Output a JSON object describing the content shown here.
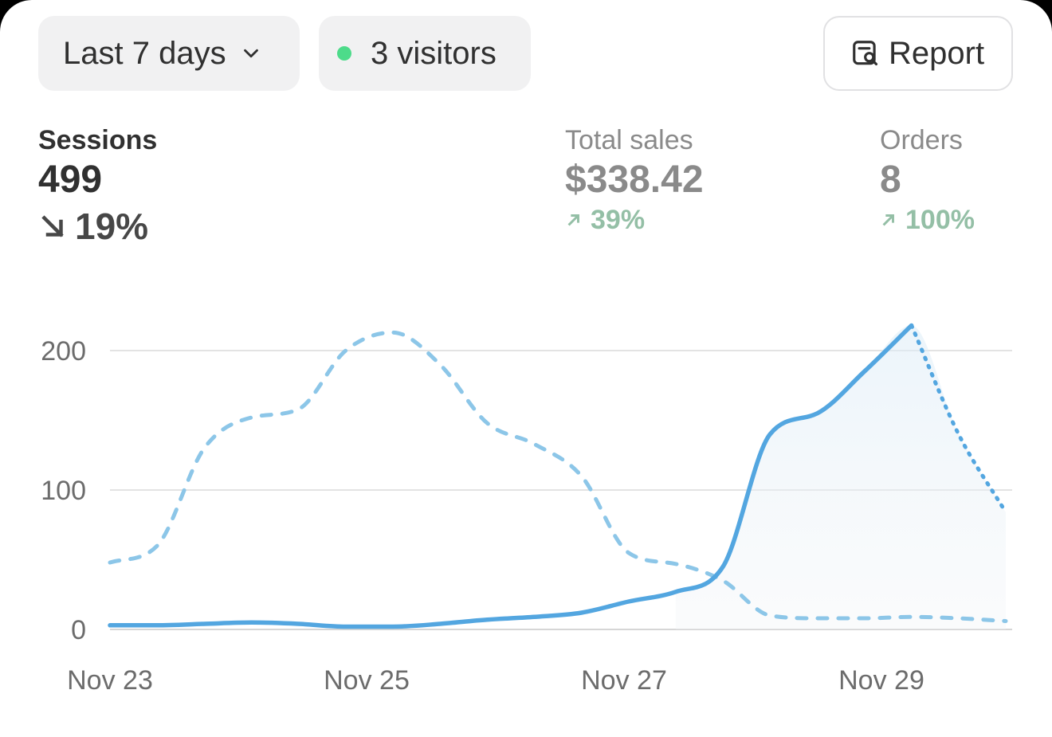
{
  "toolbar": {
    "date_range_label": "Last 7 days",
    "visitors_label": "3 visitors",
    "report_label": "Report"
  },
  "metrics": {
    "sessions": {
      "label": "Sessions",
      "value": "499",
      "change": "19%",
      "direction": "down"
    },
    "total_sales": {
      "label": "Total sales",
      "value": "$338.42",
      "change": "39%",
      "direction": "up"
    },
    "orders": {
      "label": "Orders",
      "value": "8",
      "change": "100%",
      "direction": "up"
    }
  },
  "colors": {
    "current_series": "#53a6e0",
    "previous_series": "#8cc6e8",
    "live_dot": "#4ddb8a",
    "positive_change": "#94bfa6"
  },
  "chart_data": {
    "type": "line",
    "x_tick_labels": [
      "Nov 23",
      "Nov 25",
      "Nov 27",
      "Nov 29"
    ],
    "y_ticks": [
      0,
      100,
      200
    ],
    "ylim": [
      0,
      240
    ],
    "grid": true,
    "series": [
      {
        "style": "solid",
        "projected_from_index": 12,
        "values": [
          3,
          3,
          4,
          5,
          4,
          2,
          2,
          4,
          7,
          9,
          12,
          20,
          27,
          45,
          140,
          155,
          185,
          218,
          140,
          84
        ]
      },
      {
        "style": "dashed",
        "values": [
          48,
          60,
          130,
          152,
          158,
          200,
          213,
          190,
          148,
          133,
          110,
          55,
          47,
          35,
          10,
          8,
          8,
          9,
          8,
          6
        ]
      }
    ]
  }
}
